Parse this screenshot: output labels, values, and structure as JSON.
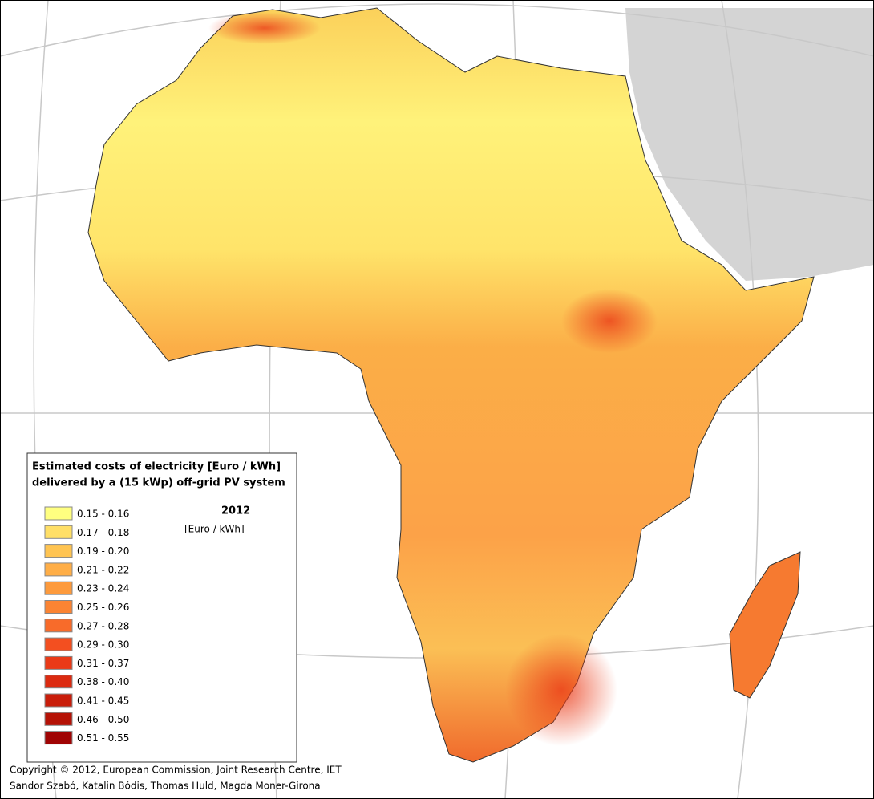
{
  "legend": {
    "title_lines": [
      "Estimated costs of electricity [Euro / kWh]",
      "delivered by a (15 kWp) off-grid PV system"
    ],
    "year": "2012",
    "unit": "[Euro / kWh]",
    "items": [
      {
        "label": "0.15 - 0.16",
        "color": "#ffff80"
      },
      {
        "label": "0.17 - 0.18",
        "color": "#ffdf66"
      },
      {
        "label": "0.19 - 0.20",
        "color": "#ffc451"
      },
      {
        "label": "0.21 - 0.22",
        "color": "#ffae47"
      },
      {
        "label": "0.23 - 0.24",
        "color": "#fd9a3c"
      },
      {
        "label": "0.25 - 0.26",
        "color": "#fb8433"
      },
      {
        "label": "0.27 - 0.28",
        "color": "#f86b2a"
      },
      {
        "label": "0.29 - 0.30",
        "color": "#f34f20"
      },
      {
        "label": "0.31 - 0.37",
        "color": "#ea3a17"
      },
      {
        "label": "0.38 - 0.40",
        "color": "#dc2a10"
      },
      {
        "label": "0.41 - 0.45",
        "color": "#c91d0a"
      },
      {
        "label": "0.46 - 0.50",
        "color": "#b51206"
      },
      {
        "label": "0.51 - 0.55",
        "color": "#a00404"
      }
    ]
  },
  "credits": [
    "Copyright © 2012, European Commission, Joint Research Centre, IET",
    "Sandor Szabó, Katalin Bódis, Thomas Huld, Magda Moner-Girona"
  ]
}
